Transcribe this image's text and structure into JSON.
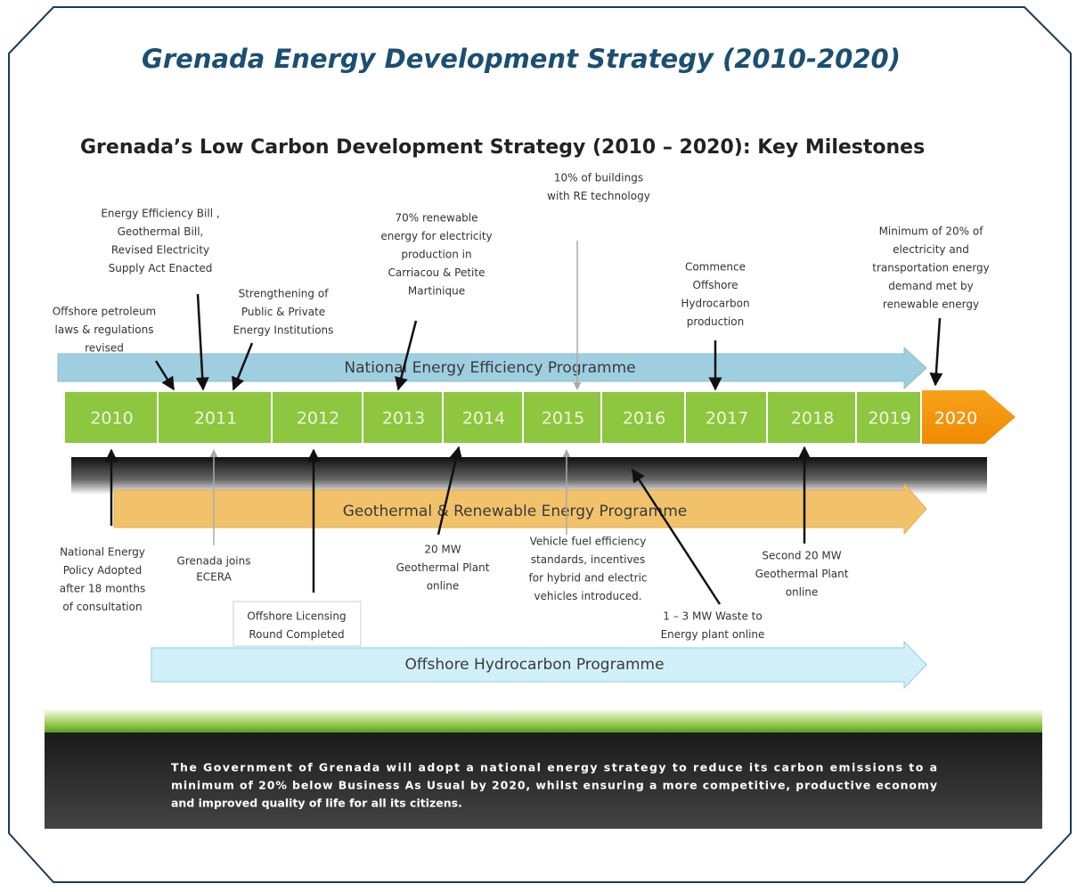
{
  "title": "Grenada Energy Development Strategy (2010-2020)",
  "subtitle": "Grenada’s Low Carbon Development Strategy (2010 – 2020): Key Milestones",
  "years": [
    "2010",
    "2011",
    "2012",
    "2013",
    "2014",
    "2015",
    "2016",
    "2017",
    "2018",
    "2019",
    "2020"
  ],
  "programmes": [
    "National Energy Efficiency Programme",
    "Geothermal & Renewable Energy  Programme",
    "Offshore Hydrocarbon Programme"
  ],
  "milestones_above": [
    {
      "lines": [
        "Energy Efficiency Bill ,",
        "Geothermal Bill,",
        "Revised Electricity",
        "Supply Act Enacted"
      ]
    },
    {
      "lines": [
        "Offshore petroleum",
        "laws & regulations",
        "revised"
      ]
    },
    {
      "lines": [
        "Strengthening of",
        "Public & Private",
        "Energy Institutions"
      ]
    },
    {
      "lines": [
        "70% renewable",
        "energy for electricity",
        "production  in",
        "Carriacou & Petite",
        "Martinique"
      ]
    },
    {
      "lines": [
        "10% of buildings",
        "with RE technology"
      ]
    },
    {
      "lines": [
        "Commence",
        "Offshore",
        "Hydrocarbon",
        "production"
      ]
    },
    {
      "lines": [
        "Minimum of 20% of",
        "electricity and",
        "transportation energy",
        "demand met by",
        "renewable energy"
      ]
    }
  ],
  "milestones_below": [
    {
      "lines": [
        "National Energy",
        "Policy Adopted",
        "after 18 months",
        "of  consultation"
      ]
    },
    {
      "lines": [
        "Grenada joins",
        "ECERA"
      ]
    },
    {
      "lines": [
        "Offshore Licensing",
        "Round Completed"
      ]
    },
    {
      "lines": [
        "20 MW",
        "Geothermal Plant",
        "online"
      ]
    },
    {
      "lines": [
        "Vehicle fuel efficiency",
        "standards,  incentives",
        "for hybrid and electric",
        "vehicles introduced."
      ]
    },
    {
      "lines": [
        "1 – 3 MW Waste to",
        "Energy plant online"
      ]
    },
    {
      "lines": [
        "Second 20 MW",
        "Geothermal Plant",
        "online"
      ]
    }
  ],
  "statement": [
    "The Government of Grenada will adopt a national energy strategy to reduce its carbon emissions to a",
    "minimum of 20% below Business As Usual by 2020, whilst ensuring a more competitive, productive economy",
    "and improved quality of life for all its citizens."
  ]
}
